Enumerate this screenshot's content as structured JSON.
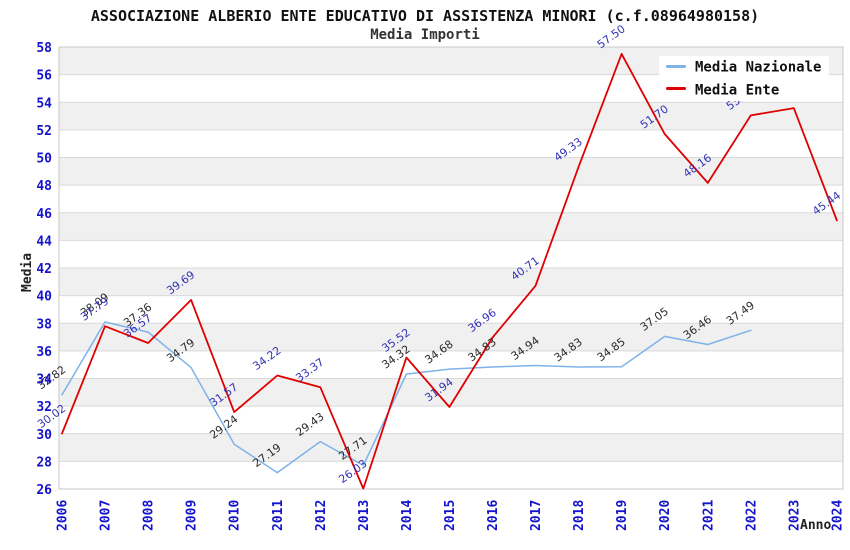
{
  "title": "ASSOCIAZIONE ALBERIO ENTE EDUCATIVO DI ASSISTENZA MINORI (c.f.08964980158)",
  "subtitle": "Media Importi",
  "legend": [
    {
      "label": "Media Nazionale",
      "color": "#7EB2E8"
    },
    {
      "label": "Media Ente",
      "color": "#E00000"
    }
  ],
  "axes": {
    "y_title": "Media",
    "x_title": "Anno",
    "y_ticks": [
      26,
      28,
      30,
      32,
      34,
      36,
      38,
      40,
      42,
      44,
      46,
      48,
      50,
      52,
      54,
      56,
      58
    ],
    "x_ticks": [
      "2006",
      "2007",
      "2008",
      "2009",
      "2010",
      "2011",
      "2012",
      "2013",
      "2014",
      "2015",
      "2016",
      "2017",
      "2018",
      "2019",
      "2020",
      "2021",
      "2022",
      "2023",
      "2024"
    ]
  },
  "colors": {
    "axis_text": "#1414CC",
    "nazionale_line": "#7EB2E8",
    "ente_line": "#E00000",
    "nazionale_label": "#2B2B2B",
    "ente_label": "#3434B4"
  },
  "chart_data": {
    "type": "line",
    "x": [
      2006,
      2007,
      2008,
      2009,
      2010,
      2011,
      2012,
      2013,
      2014,
      2015,
      2016,
      2017,
      2018,
      2019,
      2020,
      2021,
      2022,
      2023,
      2024
    ],
    "title": "ASSOCIAZIONE ALBERIO ENTE EDUCATIVO DI ASSISTENZA MINORI (c.f.08964980158)",
    "subtitle": "Media Importi",
    "xlabel": "Anno",
    "ylabel": "Media",
    "ylim": [
      26,
      58
    ],
    "grid": true,
    "legend_position": "top-right",
    "series": [
      {
        "name": "Media Nazionale",
        "color": "#7EB2E8",
        "label_color": "#2B2B2B",
        "values": [
          32.82,
          38.09,
          37.36,
          34.79,
          29.24,
          27.19,
          29.43,
          27.71,
          34.32,
          34.68,
          34.83,
          34.94,
          34.83,
          34.85,
          37.05,
          36.46,
          37.49,
          null,
          null
        ],
        "labels": [
          "32.82",
          "38.09",
          "37.36",
          "34.79",
          "29.24",
          "27.19",
          "29.43",
          "27.71",
          "34.32",
          "34.68",
          "34.83",
          "34.94",
          "34.83",
          "34.85",
          "37.05",
          "36.46",
          "37.49",
          "",
          ""
        ]
      },
      {
        "name": "Media Ente",
        "color": "#E00000",
        "label_color": "#3434B4",
        "values": [
          30.02,
          37.79,
          36.57,
          39.69,
          31.57,
          34.22,
          33.37,
          26.03,
          35.52,
          31.94,
          36.96,
          40.71,
          49.33,
          57.5,
          51.7,
          48.16,
          53.05,
          53.58,
          45.44
        ],
        "labels": [
          "30.02",
          "37.79",
          "36.57",
          "39.69",
          "31.57",
          "34.22",
          "33.37",
          "26.03",
          "35.52",
          "31.94",
          "36.96",
          "40.71",
          "49.33",
          "57.50",
          "51.70",
          "48.16",
          "53.",
          "",
          "45.44"
        ]
      }
    ]
  }
}
